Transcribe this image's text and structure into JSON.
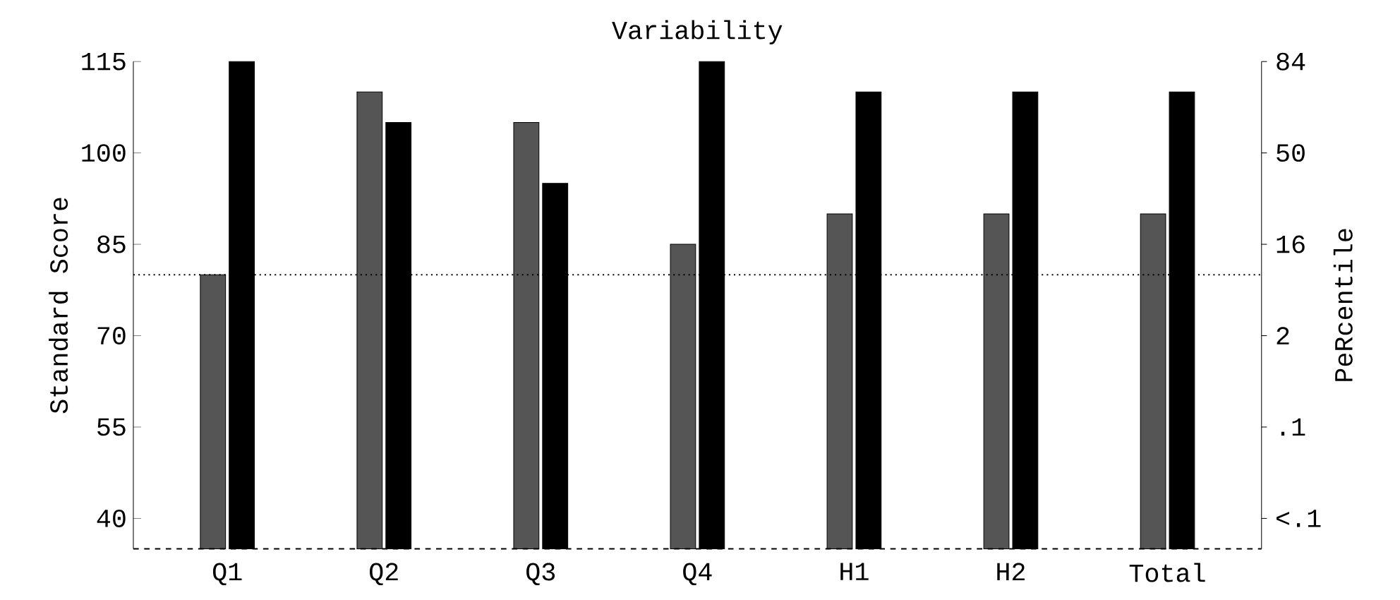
{
  "chart_data": {
    "type": "bar",
    "title": "Variability",
    "ylabel": "Standard Score",
    "y2label": "PeRcentile",
    "categories": [
      "Q1",
      "Q2",
      "Q3",
      "Q4",
      "H1",
      "H2",
      "Total"
    ],
    "series": [
      {
        "color": "#555555",
        "values": [
          80,
          110,
          105,
          85,
          90,
          90,
          90
        ]
      },
      {
        "color": "#000000",
        "values": [
          115,
          105,
          95,
          115,
          110,
          110,
          110
        ]
      }
    ],
    "ylim": [
      35,
      115
    ],
    "yticks": [
      40,
      55,
      70,
      85,
      100,
      115
    ],
    "annotations": [
      "84",
      "50",
      "16",
      "2",
      ".1",
      "<.1"
    ],
    "ref_lines": [
      {
        "axis": "y",
        "value": 80,
        "line_style": "dotted"
      },
      {
        "axis": "y",
        "value": 35,
        "line_style": "dashed"
      }
    ],
    "grid": false
  }
}
